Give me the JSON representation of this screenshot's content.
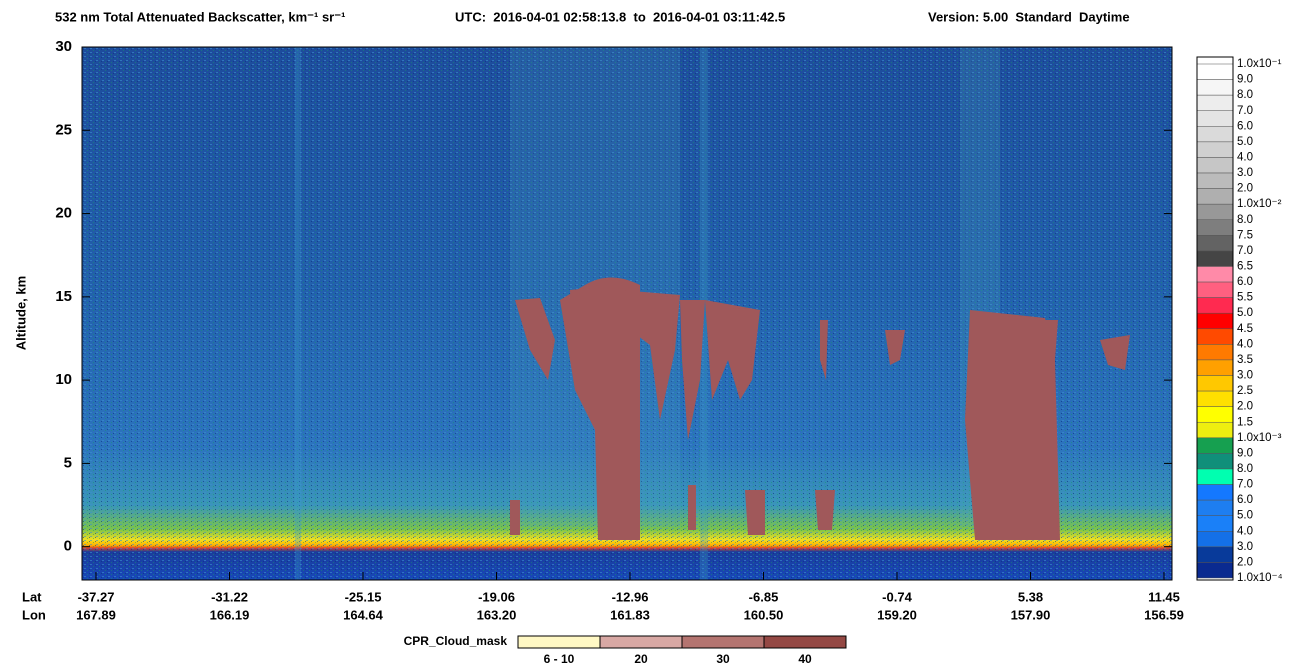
{
  "chart_data": {
    "type": "heatmap",
    "title": "532 nm Total Attenuated Backscatter, km⁻¹ sr⁻¹",
    "time_range": "UTC:  2016-04-01 02:58:13.8  to  2016-04-01 03:11:42.5",
    "version": "Version: 5.00  Standard  Daytime",
    "y_label": "Altitude, km",
    "ylim": [
      -2,
      30
    ],
    "yticks": [
      0,
      5,
      10,
      15,
      20,
      25,
      30
    ],
    "x_row_labels": [
      "Lat",
      "Lon"
    ],
    "x_lat": [
      "-37.27",
      "-31.22",
      "-25.15",
      "-19.06",
      "-12.96",
      "-6.85",
      "-0.74",
      "5.38",
      "11.45"
    ],
    "x_lon": [
      "167.89",
      "166.19",
      "164.64",
      "163.20",
      "161.83",
      "160.50",
      "159.20",
      "157.90",
      "156.59"
    ],
    "colorbar": {
      "labels": [
        "1.0x10⁻¹",
        "9.0",
        "8.0",
        "7.0",
        "6.0",
        "5.0",
        "4.0",
        "3.0",
        "2.0",
        "1.0x10⁻²",
        "8.0",
        "7.5",
        "7.0",
        "6.5",
        "6.0",
        "5.5",
        "5.0",
        "4.5",
        "4.0",
        "3.5",
        "3.0",
        "2.5",
        "2.0",
        "1.5",
        "1.0x10⁻³",
        "9.0",
        "8.0",
        "7.0",
        "6.0",
        "5.0",
        "4.0",
        "3.0",
        "2.0",
        "1.0x10⁻⁴"
      ],
      "colors": [
        "#ffffff",
        "#f6f6f6",
        "#ededed",
        "#e4e4e4",
        "#dadada",
        "#d0d0d0",
        "#c6c6c6",
        "#bbbbbb",
        "#afafaf",
        "#989898",
        "#7e7e7e",
        "#636363",
        "#454545",
        "#ff8aa8",
        "#ff6080",
        "#ff2a50",
        "#ff0000",
        "#ff4a00",
        "#ff7a00",
        "#ffa000",
        "#ffc800",
        "#ffe000",
        "#ffff00",
        "#eeee10",
        "#16a050",
        "#108f7a",
        "#00ffb0",
        "#1478ff",
        "#1e7ef0",
        "#1a80f8",
        "#1470e8",
        "#083a9a",
        "#0a2a90"
      ]
    },
    "cpr_legend": {
      "name": "CPR_Cloud_mask",
      "labels": [
        "6 - 10",
        "20",
        "30",
        "40"
      ],
      "colors": [
        "#fff8c4",
        "#d8a8a4",
        "#b47470",
        "#944844"
      ]
    }
  }
}
